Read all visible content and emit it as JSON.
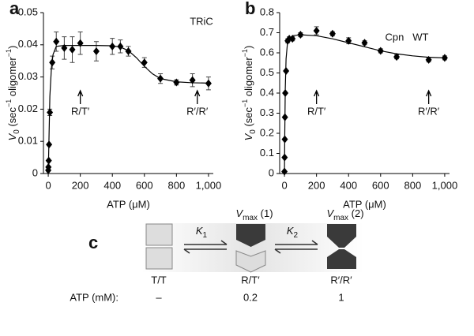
{
  "chart_data": [
    {
      "type": "scatter",
      "panel": "a",
      "label": "TRiC",
      "xlabel": "ATP (μM)",
      "ylabel": [
        "V",
        "0",
        " (sec",
        "−1",
        " oligomer",
        "−1",
        ")"
      ],
      "xlim": [
        -30,
        1030
      ],
      "ylim": [
        0,
        0.05
      ],
      "xticks": [
        0,
        200,
        400,
        600,
        800,
        {
          "value": 1000,
          "label": "1,000"
        }
      ],
      "yticks": [
        0,
        0.01,
        0.02,
        0.03,
        0.04,
        0.05
      ],
      "annotations": [
        "R/T′",
        "R′/R′"
      ],
      "series": [
        {
          "style": "points",
          "color": "#000000",
          "x": [
            0,
            1,
            3,
            5,
            10,
            25,
            50,
            100,
            150,
            200,
            300,
            400,
            450,
            500,
            600,
            700,
            800,
            900,
            1000
          ],
          "values": [
            0.001,
            0.002,
            0.004,
            0.009,
            0.019,
            0.0345,
            0.041,
            0.039,
            0.0385,
            0.0405,
            0.038,
            0.0395,
            0.0395,
            0.038,
            0.0345,
            0.0295,
            0.0283,
            0.029,
            0.028
          ],
          "errors": [
            0,
            0,
            0,
            0,
            0.001,
            0.002,
            0.003,
            0.0035,
            0.004,
            0.0035,
            0.003,
            0.0025,
            0.002,
            0.0015,
            0.0015,
            0.0015,
            0.0008,
            0.002,
            0.002
          ]
        },
        {
          "style": "line",
          "color": "#000000",
          "x": [
            0,
            5,
            10,
            20,
            30,
            50,
            100,
            200,
            300,
            400,
            450,
            500,
            550,
            600,
            650,
            700,
            800,
            900,
            1000
          ],
          "values": [
            0,
            0.012,
            0.024,
            0.033,
            0.037,
            0.0395,
            0.0398,
            0.0398,
            0.0398,
            0.0397,
            0.0393,
            0.0382,
            0.036,
            0.0333,
            0.031,
            0.0295,
            0.0285,
            0.0282,
            0.0281
          ]
        }
      ]
    },
    {
      "type": "scatter",
      "panel": "b",
      "label": "Cpn   WT",
      "xlabel": "ATP (μM)",
      "ylabel": [
        "V",
        "0",
        " (sec",
        "−1",
        " oligomer",
        "−1",
        ")"
      ],
      "xlim": [
        -30,
        1030
      ],
      "ylim": [
        0,
        0.8
      ],
      "xticks": [
        0,
        200,
        400,
        600,
        800,
        {
          "value": 1000,
          "label": "1,000"
        }
      ],
      "yticks": [
        0,
        0.1,
        0.2,
        0.3,
        0.4,
        0.5,
        0.6,
        0.7,
        0.8
      ],
      "annotations": [
        "R/T′",
        "R′/R′"
      ],
      "series": [
        {
          "style": "points",
          "color": "#000000",
          "x": [
            0,
            1,
            2,
            3,
            5,
            10,
            20,
            30,
            50,
            100,
            200,
            300,
            400,
            500,
            600,
            700,
            900,
            1000
          ],
          "values": [
            0.01,
            0.08,
            0.17,
            0.28,
            0.4,
            0.51,
            0.66,
            0.67,
            0.67,
            0.69,
            0.71,
            0.695,
            0.66,
            0.65,
            0.61,
            0.58,
            0.565,
            0.575
          ],
          "errors": [
            0,
            0,
            0,
            0,
            0,
            0,
            0.01,
            0.01,
            0.01,
            0.01,
            0.02,
            0.01,
            0.015,
            0.01,
            0.01,
            0.01,
            0.01,
            0.01
          ]
        },
        {
          "style": "line",
          "color": "#000000",
          "x": [
            0,
            2,
            5,
            10,
            20,
            50,
            100,
            200,
            300,
            400,
            500,
            600,
            700,
            800,
            900,
            1000
          ],
          "values": [
            0,
            0.2,
            0.42,
            0.57,
            0.66,
            0.685,
            0.69,
            0.685,
            0.67,
            0.65,
            0.63,
            0.61,
            0.595,
            0.585,
            0.578,
            0.575
          ]
        }
      ]
    }
  ],
  "diagram": {
    "panel": "c",
    "k1": [
      "K",
      "1"
    ],
    "k2": [
      "K",
      "2"
    ],
    "vmax1": [
      "V",
      "max",
      " (1)"
    ],
    "vmax2": [
      "V",
      "max",
      " (2)"
    ],
    "states": [
      "T/T",
      "R/T′",
      "R′/R′"
    ],
    "atp_label": "ATP (mM):",
    "atp_values": [
      "–",
      "0.2",
      "1"
    ]
  }
}
